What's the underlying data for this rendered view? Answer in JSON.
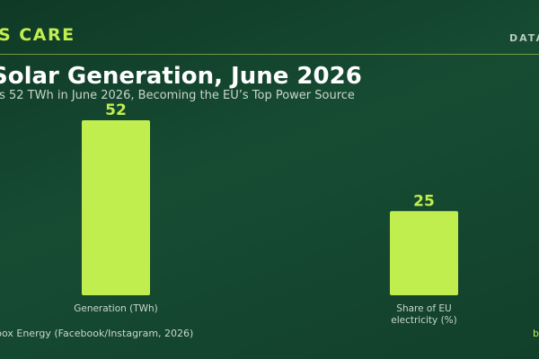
{
  "header": {
    "brand": "S CARE",
    "tag": "DATA",
    "title": "Solar Generation, June 2026",
    "subtitle": "ts 52 TWh in June 2026, Becoming the EU’s Top Power Source"
  },
  "footer": {
    "source": "box Energy (Facebook/Instagram, 2026)",
    "credit": "b"
  },
  "colors": {
    "bar": "#c1ee4f",
    "value_label": "#c1ee4f",
    "category_label": "#c9d6cd"
  },
  "chart_data": {
    "type": "bar",
    "categories": [
      "Generation (TWh)",
      "Share of EU electricity (%)"
    ],
    "category_lines": [
      [
        "Generation (TWh)"
      ],
      [
        "Share of EU",
        "electricity (%)"
      ]
    ],
    "values": [
      52,
      25
    ],
    "value_labels": [
      "52",
      "25"
    ],
    "ylim": [
      0,
      52
    ],
    "grid": false,
    "legend": "none"
  }
}
